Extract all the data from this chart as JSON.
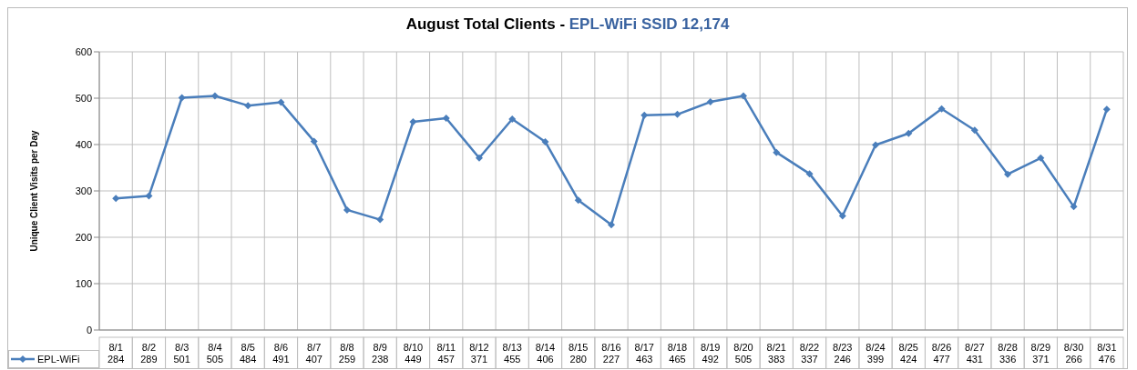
{
  "chart_data": {
    "type": "line",
    "title": "August Total Clients -",
    "subtitle": "EPL-WiFi SSID 12,174",
    "ylabel": "Unique Client Visits per Day",
    "categories": [
      "8/1",
      "8/2",
      "8/3",
      "8/4",
      "8/5",
      "8/6",
      "8/7",
      "8/8",
      "8/9",
      "8/10",
      "8/11",
      "8/12",
      "8/13",
      "8/14",
      "8/15",
      "8/16",
      "8/17",
      "8/18",
      "8/19",
      "8/20",
      "8/21",
      "8/22",
      "8/23",
      "8/24",
      "8/25",
      "8/26",
      "8/27",
      "8/28",
      "8/29",
      "8/30",
      "8/31"
    ],
    "series": [
      {
        "name": "EPL-WiFi",
        "color": "#4a7ebb",
        "values": [
          284,
          289,
          501,
          505,
          484,
          491,
          407,
          259,
          238,
          449,
          457,
          371,
          455,
          406,
          280,
          227,
          463,
          465,
          492,
          505,
          383,
          337,
          246,
          399,
          424,
          477,
          431,
          336,
          371,
          266,
          476
        ]
      }
    ],
    "ylim": [
      0,
      600
    ],
    "yticks": [
      0,
      100,
      200,
      300,
      400,
      500,
      600
    ],
    "grid": true,
    "legend": "bottom left",
    "data_labels": true,
    "marker": "diamond",
    "line_style": "solid"
  }
}
